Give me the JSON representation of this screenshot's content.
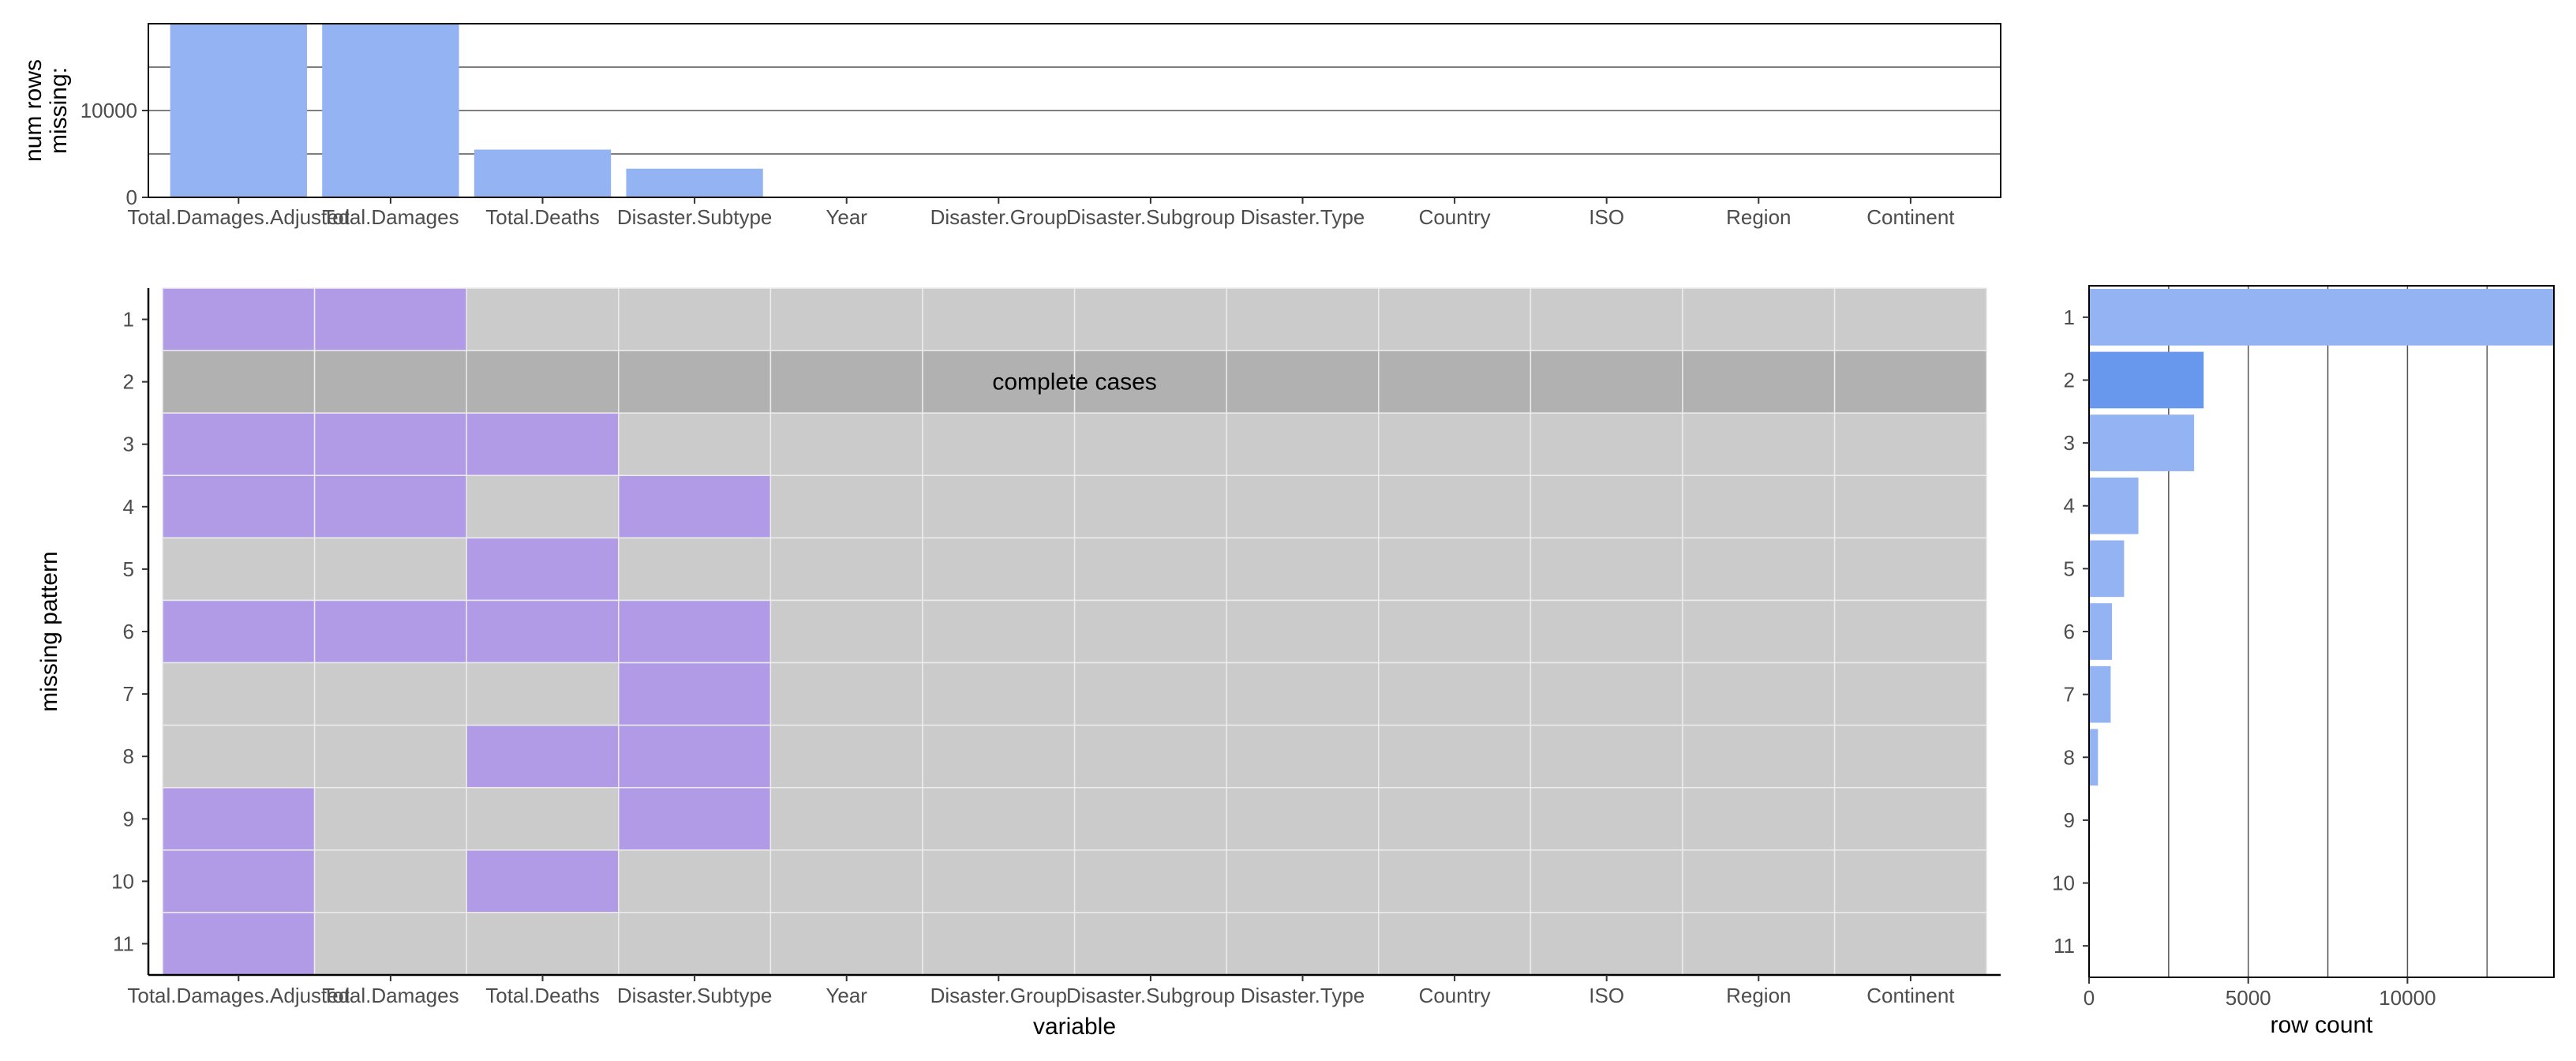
{
  "chart_data": [
    {
      "type": "bar",
      "panel": "missing counts per variable",
      "categories": [
        "Total.Damages.Adjusted",
        "Total.Damages",
        "Total.Deaths",
        "Disaster.Subtype",
        "Year",
        "Disaster.Group",
        "Disaster.Subgroup",
        "Disaster.Type",
        "Country",
        "ISO",
        "Region",
        "Continent"
      ],
      "tick_labels": [
        "Total.Damages.Adjusted",
        "Total.Damages",
        "Total.Deaths",
        "Disaster.Subtype",
        "Year",
        "Disaster.Group",
        "Disaster.Subgroup",
        "Disaster.Type",
        "Country",
        "ISO",
        "Region",
        "Continent"
      ],
      "values": [
        20200,
        20200,
        5500,
        3300,
        0,
        0,
        0,
        0,
        0,
        0,
        0,
        0
      ],
      "ylabel_lines": [
        "num rows",
        "missing:"
      ],
      "yticks": [
        0,
        10000
      ],
      "ylim": [
        0,
        20000
      ],
      "grid_values": [
        5000,
        10000,
        15000
      ],
      "bar_color": "#93b3f2"
    },
    {
      "type": "heatmap",
      "panel": "missing pattern matrix",
      "x_categories": [
        "Total.Damages.Adjusted",
        "Total.Damages",
        "Total.Deaths",
        "Disaster.Subtype",
        "Year",
        "Disaster.Group",
        "Disaster.Subgroup",
        "Disaster.Type",
        "Country",
        "ISO",
        "Region",
        "Continent"
      ],
      "x_tick_labels": [
        "Total.Damages.Adjusted",
        "Total.Damages",
        "Total.Deaths",
        "Disaster.Subtype",
        "Year",
        "Disaster.Group",
        "Disaster.Subgroup",
        "Disaster.Type",
        "Country",
        "ISO",
        "Region",
        "Continent"
      ],
      "y_categories": [
        "1",
        "2",
        "3",
        "4",
        "5",
        "6",
        "7",
        "8",
        "9",
        "10",
        "11"
      ],
      "xlabel": "variable",
      "ylabel": "missing pattern",
      "complete_cases_row": 2,
      "complete_cases_label": "complete cases",
      "missing": [
        [
          1,
          1,
          0,
          0,
          0,
          0,
          0,
          0,
          0,
          0,
          0,
          0
        ],
        [
          0,
          0,
          0,
          0,
          0,
          0,
          0,
          0,
          0,
          0,
          0,
          0
        ],
        [
          1,
          1,
          1,
          0,
          0,
          0,
          0,
          0,
          0,
          0,
          0,
          0
        ],
        [
          1,
          1,
          0,
          1,
          0,
          0,
          0,
          0,
          0,
          0,
          0,
          0
        ],
        [
          0,
          0,
          1,
          0,
          0,
          0,
          0,
          0,
          0,
          0,
          0,
          0
        ],
        [
          1,
          1,
          1,
          1,
          0,
          0,
          0,
          0,
          0,
          0,
          0,
          0
        ],
        [
          0,
          0,
          0,
          1,
          0,
          0,
          0,
          0,
          0,
          0,
          0,
          0
        ],
        [
          0,
          0,
          1,
          1,
          0,
          0,
          0,
          0,
          0,
          0,
          0,
          0
        ],
        [
          1,
          0,
          0,
          1,
          0,
          0,
          0,
          0,
          0,
          0,
          0,
          0
        ],
        [
          1,
          0,
          1,
          0,
          0,
          0,
          0,
          0,
          0,
          0,
          0,
          0
        ],
        [
          1,
          0,
          0,
          0,
          0,
          0,
          0,
          0,
          0,
          0,
          0,
          0
        ]
      ],
      "colors": {
        "missing": "#b19be7",
        "present": "#cbcbcb",
        "complete": "#b1b1b1",
        "grid": "#ececec"
      }
    },
    {
      "type": "bar",
      "orientation": "horizontal",
      "panel": "row count per pattern",
      "categories": [
        "1",
        "2",
        "3",
        "4",
        "5",
        "6",
        "7",
        "8",
        "9",
        "10",
        "11"
      ],
      "values": [
        14600,
        3600,
        3300,
        1550,
        1100,
        720,
        680,
        280,
        30,
        20,
        15
      ],
      "xlabel": "row count",
      "xticks": [
        0,
        5000,
        10000
      ],
      "xlim": [
        0,
        14600
      ],
      "grid_values": [
        2500,
        5000,
        7500,
        10000,
        12500
      ],
      "highlight_row": 2,
      "bar_color": "#93b3f2",
      "highlight_color": "#6898ee"
    }
  ]
}
